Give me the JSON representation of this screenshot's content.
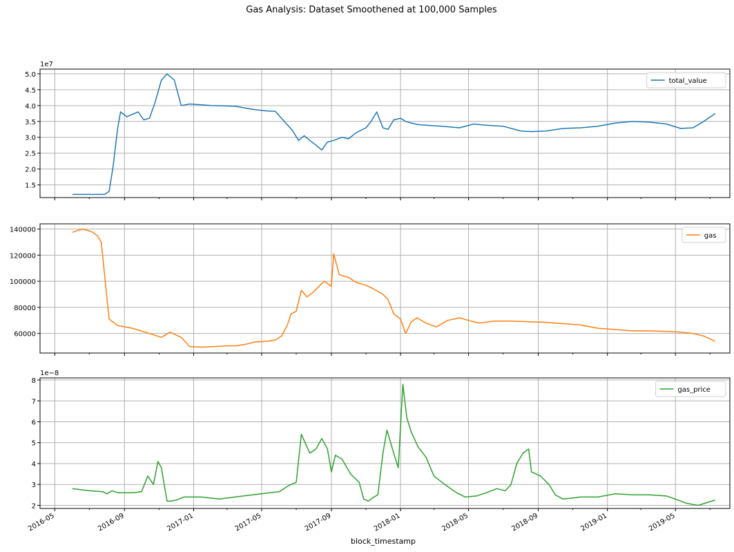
{
  "title": "Gas Analysis: Dataset Smoothened at 100,000 Samples",
  "xlabel": "block_timestamp",
  "x_ticks": [
    "2016-05",
    "2016-09",
    "2017-01",
    "2017-05",
    "2017-09",
    "2018-01",
    "2018-05",
    "2018-09",
    "2019-01",
    "2019-05"
  ],
  "chart_data": [
    {
      "type": "line",
      "series": [
        {
          "name": "total_value",
          "color": "#1f77b4"
        }
      ],
      "scale_label": "1e7",
      "ylim": [
        1.1,
        5.15
      ],
      "yticks": [
        1.5,
        2.0,
        2.5,
        3.0,
        3.5,
        4.0,
        4.5,
        5.0
      ],
      "ytick_labels": [
        "1.5",
        "2.0",
        "2.5",
        "3.0",
        "3.5",
        "4.0",
        "4.5",
        "5.0"
      ],
      "grid": true,
      "legend": "upper right",
      "x": [
        "2016-06-01",
        "2016-07-01",
        "2016-07-20",
        "2016-07-28",
        "2016-08-05",
        "2016-08-12",
        "2016-08-20",
        "2016-08-25",
        "2016-09-05",
        "2016-09-25",
        "2016-10-05",
        "2016-10-15",
        "2016-10-25",
        "2016-11-05",
        "2016-11-15",
        "2016-11-28",
        "2016-12-10",
        "2016-12-25",
        "2017-02-01",
        "2017-03-15",
        "2017-04-15",
        "2017-05-10",
        "2017-05-25",
        "2017-06-05",
        "2017-06-15",
        "2017-06-25",
        "2017-07-05",
        "2017-07-15",
        "2017-07-25",
        "2017-08-05",
        "2017-08-15",
        "2017-08-25",
        "2017-09-05",
        "2017-09-20",
        "2017-10-01",
        "2017-10-15",
        "2017-11-01",
        "2017-11-10",
        "2017-11-20",
        "2017-12-01",
        "2017-12-10",
        "2017-12-20",
        "2018-01-01",
        "2018-01-10",
        "2018-01-20",
        "2018-02-01",
        "2018-02-15",
        "2018-03-15",
        "2018-04-15",
        "2018-05-10",
        "2018-06-01",
        "2018-07-01",
        "2018-08-01",
        "2018-08-20",
        "2018-09-15",
        "2018-10-15",
        "2018-11-15",
        "2018-12-15",
        "2019-01-15",
        "2019-02-15",
        "2019-03-15",
        "2019-04-15",
        "2019-05-10",
        "2019-06-01",
        "2019-06-20",
        "2019-07-10"
      ],
      "values": [
        1.2,
        1.2,
        1.2,
        1.2,
        1.3,
        2.1,
        3.3,
        3.8,
        3.65,
        3.8,
        3.55,
        3.6,
        4.1,
        4.8,
        5.0,
        4.8,
        4.0,
        4.05,
        4.0,
        3.98,
        3.88,
        3.83,
        3.82,
        3.6,
        3.4,
        3.2,
        2.9,
        3.05,
        2.9,
        2.75,
        2.6,
        2.85,
        2.9,
        3.0,
        2.95,
        3.15,
        3.3,
        3.5,
        3.8,
        3.3,
        3.25,
        3.55,
        3.6,
        3.5,
        3.45,
        3.4,
        3.38,
        3.35,
        3.3,
        3.42,
        3.38,
        3.35,
        3.2,
        3.18,
        3.2,
        3.28,
        3.3,
        3.35,
        3.45,
        3.5,
        3.48,
        3.42,
        3.28,
        3.3,
        3.5,
        3.75
      ]
    },
    {
      "type": "line",
      "series": [
        {
          "name": "gas",
          "color": "#ff7f0e"
        }
      ],
      "ylim": [
        45000,
        144000
      ],
      "yticks": [
        60000,
        80000,
        100000,
        120000,
        140000
      ],
      "ytick_labels": [
        "60000",
        "80000",
        "100000",
        "120000",
        "140000"
      ],
      "grid": true,
      "legend": "upper right",
      "x": [
        "2016-06-01",
        "2016-06-10",
        "2016-06-20",
        "2016-07-05",
        "2016-07-15",
        "2016-07-22",
        "2016-07-28",
        "2016-08-05",
        "2016-08-20",
        "2016-09-15",
        "2016-10-15",
        "2016-11-05",
        "2016-11-20",
        "2016-12-10",
        "2016-12-25",
        "2017-01-15",
        "2017-03-01",
        "2017-03-15",
        "2017-04-01",
        "2017-04-20",
        "2017-05-10",
        "2017-05-25",
        "2017-06-05",
        "2017-06-15",
        "2017-06-22",
        "2017-07-01",
        "2017-07-10",
        "2017-07-20",
        "2017-08-01",
        "2017-08-12",
        "2017-08-20",
        "2017-09-01",
        "2017-09-05",
        "2017-09-15",
        "2017-10-01",
        "2017-10-15",
        "2017-11-01",
        "2017-11-15",
        "2017-12-01",
        "2017-12-10",
        "2017-12-20",
        "2018-01-01",
        "2018-01-10",
        "2018-01-20",
        "2018-01-30",
        "2018-02-15",
        "2018-03-05",
        "2018-03-25",
        "2018-04-15",
        "2018-05-01",
        "2018-05-20",
        "2018-06-15",
        "2018-07-15",
        "2018-08-15",
        "2018-09-15",
        "2018-10-15",
        "2018-11-15",
        "2018-12-15",
        "2019-01-15",
        "2019-02-15",
        "2019-03-15",
        "2019-04-15",
        "2019-05-10",
        "2019-06-01",
        "2019-06-20",
        "2019-07-10"
      ],
      "values": [
        137500,
        139000,
        140000,
        138000,
        135000,
        130000,
        104000,
        71000,
        66000,
        64000,
        60000,
        57000,
        61000,
        57000,
        50000,
        49500,
        50500,
        50500,
        51500,
        53500,
        54000,
        55000,
        58000,
        66000,
        75000,
        77000,
        93000,
        88000,
        92000,
        97000,
        100000,
        96000,
        121000,
        105000,
        103000,
        99000,
        97000,
        94000,
        90000,
        86000,
        75000,
        71000,
        60000,
        69000,
        72000,
        68000,
        65000,
        70000,
        72000,
        70000,
        68000,
        69500,
        69500,
        69000,
        68500,
        67500,
        66500,
        64000,
        63000,
        62000,
        62000,
        61500,
        61000,
        60000,
        58000,
        54000
      ]
    },
    {
      "type": "line",
      "series": [
        {
          "name": "gas_price",
          "color": "#2ca02c"
        }
      ],
      "scale_label": "1e−8",
      "ylim": [
        1.85,
        8.1
      ],
      "yticks": [
        2,
        3,
        4,
        5,
        6,
        7,
        8
      ],
      "ytick_labels": [
        "2",
        "3",
        "4",
        "5",
        "6",
        "7",
        "8"
      ],
      "grid": true,
      "legend": "upper right",
      "x": [
        "2016-06-01",
        "2016-06-15",
        "2016-07-01",
        "2016-07-25",
        "2016-08-01",
        "2016-08-10",
        "2016-08-20",
        "2016-09-15",
        "2016-10-01",
        "2016-10-12",
        "2016-10-22",
        "2016-10-30",
        "2016-11-05",
        "2016-11-15",
        "2016-11-22",
        "2016-12-01",
        "2016-12-15",
        "2017-01-15",
        "2017-02-15",
        "2017-03-15",
        "2017-04-15",
        "2017-05-15",
        "2017-06-01",
        "2017-06-15",
        "2017-06-22",
        "2017-07-01",
        "2017-07-10",
        "2017-07-25",
        "2017-08-05",
        "2017-08-15",
        "2017-08-25",
        "2017-09-01",
        "2017-09-08",
        "2017-09-20",
        "2017-10-05",
        "2017-10-20",
        "2017-10-28",
        "2017-11-05",
        "2017-11-15",
        "2017-11-22",
        "2017-12-01",
        "2017-12-08",
        "2017-12-20",
        "2017-12-28",
        "2018-01-05",
        "2018-01-12",
        "2018-01-20",
        "2018-02-01",
        "2018-02-15",
        "2018-03-01",
        "2018-03-20",
        "2018-04-10",
        "2018-04-25",
        "2018-05-15",
        "2018-06-01",
        "2018-06-20",
        "2018-07-05",
        "2018-07-15",
        "2018-07-25",
        "2018-08-05",
        "2018-08-15",
        "2018-08-20",
        "2018-09-05",
        "2018-09-20",
        "2018-10-01",
        "2018-10-15",
        "2018-11-15",
        "2018-12-15",
        "2019-01-15",
        "2019-02-15",
        "2019-03-15",
        "2019-04-15",
        "2019-05-01",
        "2019-05-20",
        "2019-06-10",
        "2019-07-10"
      ],
      "values": [
        2.8,
        2.75,
        2.7,
        2.65,
        2.55,
        2.7,
        2.6,
        2.6,
        2.65,
        3.4,
        3.0,
        4.1,
        3.8,
        2.2,
        2.2,
        2.25,
        2.4,
        2.4,
        2.3,
        2.4,
        2.5,
        2.6,
        2.65,
        2.9,
        3.0,
        3.1,
        5.4,
        4.5,
        4.7,
        5.2,
        4.7,
        3.6,
        4.4,
        4.2,
        3.5,
        3.1,
        2.3,
        2.2,
        2.4,
        2.5,
        4.5,
        5.6,
        4.5,
        3.8,
        7.8,
        6.2,
        5.5,
        4.8,
        4.3,
        3.4,
        3.0,
        2.6,
        2.4,
        2.45,
        2.6,
        2.8,
        2.7,
        3.0,
        4.0,
        4.5,
        4.7,
        3.6,
        3.4,
        3.0,
        2.5,
        2.3,
        2.4,
        2.4,
        2.55,
        2.5,
        2.5,
        2.45,
        2.3,
        2.1,
        2.0,
        2.25
      ]
    }
  ]
}
